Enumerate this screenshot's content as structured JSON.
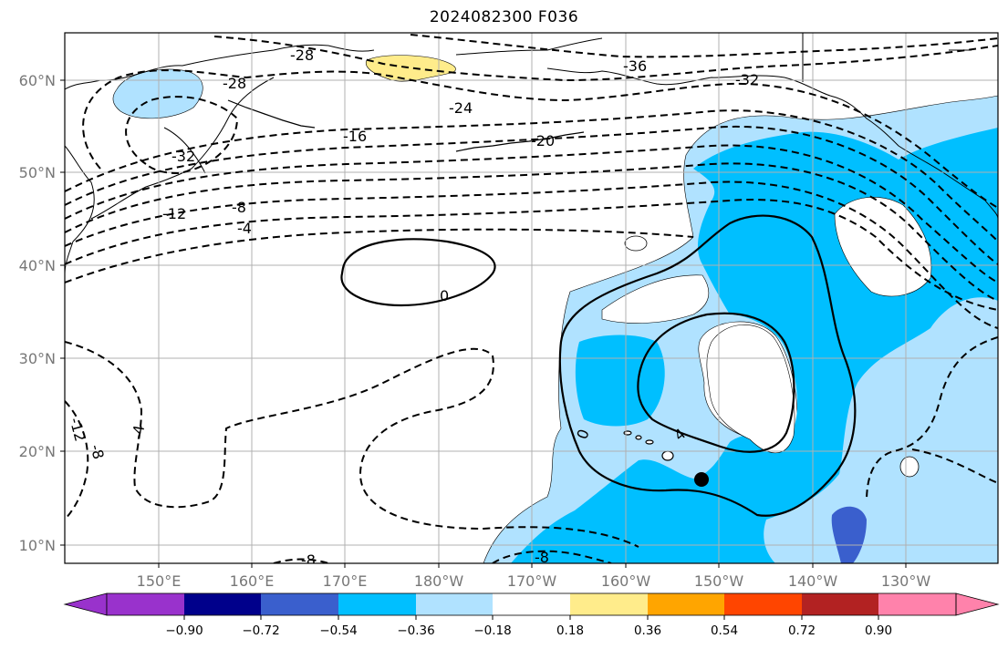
{
  "title": "2024082300 F036",
  "lat_labels": [
    "60°N",
    "50°N",
    "40°N",
    "30°N",
    "20°N",
    "10°N"
  ],
  "lon_labels": [
    "150°E",
    "160°E",
    "170°E",
    "180°W",
    "170°W",
    "160°W",
    "150°W",
    "140°W",
    "130°W"
  ],
  "colorbar": {
    "ticks": [
      "−0.90",
      "−0.72",
      "−0.54",
      "−0.36",
      "−0.18",
      "0.18",
      "0.36",
      "0.54",
      "0.72",
      "0.90"
    ],
    "colors": [
      "#9932cc",
      "#00008b",
      "#3a5fcd",
      "#00bfff",
      "#b0e2ff",
      "#ffffff",
      "#ffec8b",
      "#ffa500",
      "#ff4500",
      "#b22222",
      "#ff82ab"
    ]
  },
  "contour_labels": [
    "-28",
    "-28",
    "-36",
    "-32",
    "-24",
    "-16",
    "-20",
    "-32",
    "-12",
    "-8",
    "-4",
    "0",
    "-4",
    "0",
    "4",
    "-12",
    "-8",
    "-8",
    "-8"
  ],
  "fill_colors": {
    "light_blue": "#b0e2ff",
    "deep_sky_blue": "#00bfff",
    "royal_blue": "#3a5fcd",
    "light_yellow": "#ffec8b"
  },
  "marker": "storm-center-dot"
}
